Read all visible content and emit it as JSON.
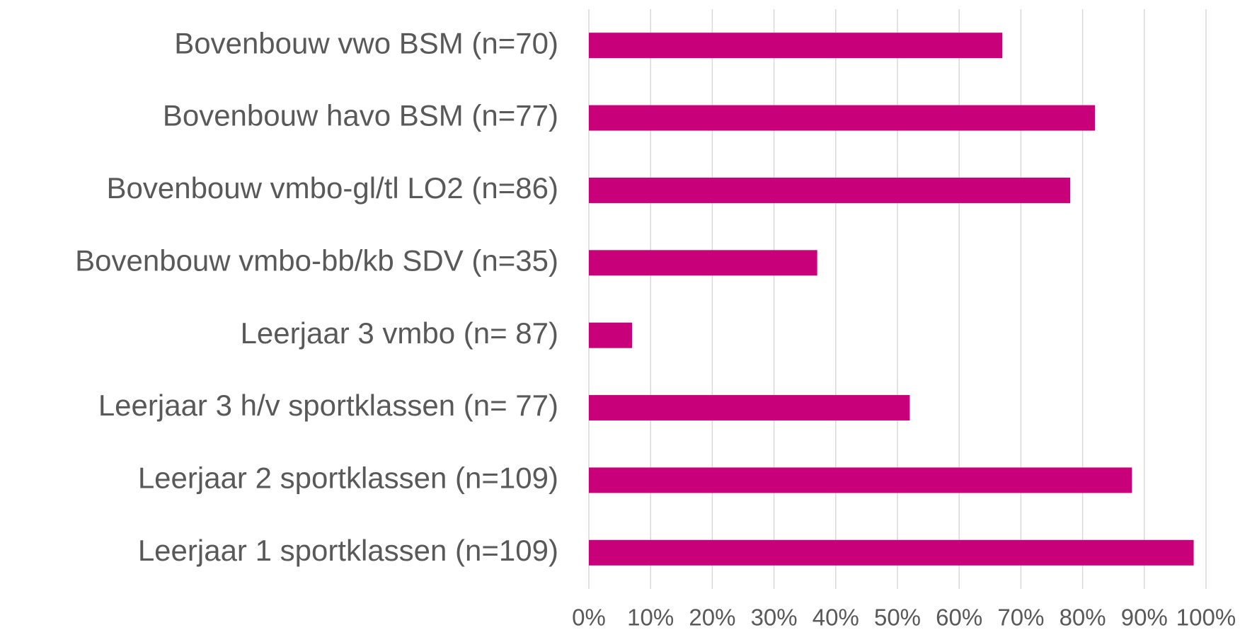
{
  "chart_data": {
    "type": "bar",
    "orientation": "horizontal",
    "categories": [
      "Bovenbouw vwo BSM (n=70)",
      "Bovenbouw havo BSM (n=77)",
      "Bovenbouw vmbo-gl/tl LO2 (n=86)",
      "Bovenbouw vmbo-bb/kb SDV (n=35)",
      "Leerjaar 3 vmbo (n= 87)",
      "Leerjaar 3 h/v sportklassen (n= 77)",
      "Leerjaar 2 sportklassen (n=109)",
      "Leerjaar 1 sportklassen (n=109)"
    ],
    "values": [
      67,
      82,
      78,
      37,
      7,
      52,
      88,
      98
    ],
    "color": "#c8007a",
    "xlim": [
      0,
      100
    ],
    "xticks": [
      {
        "value": 0,
        "label": "0%"
      },
      {
        "value": 10,
        "label": "10%"
      },
      {
        "value": 20,
        "label": "20%"
      },
      {
        "value": 30,
        "label": "30%"
      },
      {
        "value": 40,
        "label": "40%"
      },
      {
        "value": 50,
        "label": "50%"
      },
      {
        "value": 60,
        "label": "60%"
      },
      {
        "value": 70,
        "label": "70%"
      },
      {
        "value": 80,
        "label": "80%"
      },
      {
        "value": 90,
        "label": "90%"
      },
      {
        "value": 100,
        "label": "100%"
      }
    ],
    "grid": true
  }
}
